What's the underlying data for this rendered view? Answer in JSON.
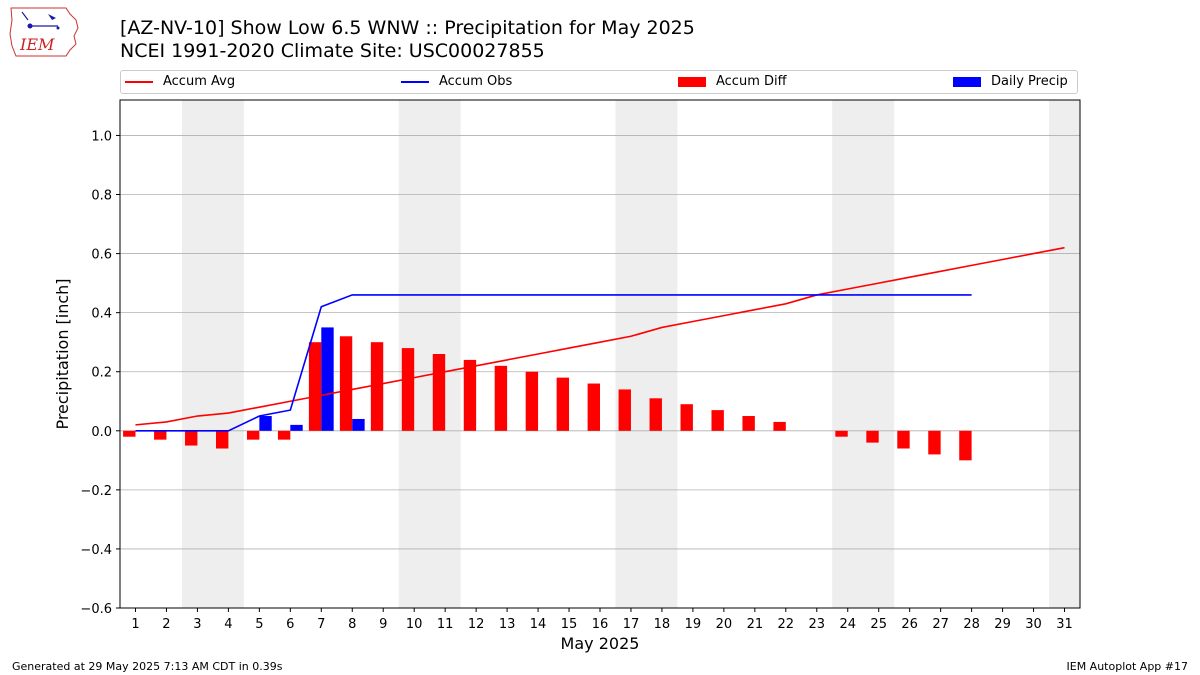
{
  "header": {
    "title_line1": "[AZ-NV-10] Show Low 6.5 WNW :: Precipitation for May 2025",
    "title_line2": "NCEI 1991-2020 Climate Site: USC00027855"
  },
  "logo": {
    "text": "IEM",
    "color": "#cc2222"
  },
  "footer": {
    "left": "Generated at 29 May 2025 7:13 AM CDT in 0.39s",
    "right": "IEM Autoplot App #17"
  },
  "legend": {
    "accum_avg": "Accum Avg",
    "accum_obs": "Accum Obs",
    "accum_diff": "Accum Diff",
    "daily_precip": "Daily Precip"
  },
  "colors": {
    "accum_avg": "#ff0000",
    "accum_obs": "#0000ff",
    "accum_diff": "#ff0000",
    "daily_precip": "#0000ff",
    "weekend_shade": "#eeeeee",
    "grid": "#b0b0b0"
  },
  "chart_data": {
    "type": "bar",
    "xlabel": "May 2025",
    "ylabel": "Precipitation [inch]",
    "ylim": [
      -0.6,
      1.12
    ],
    "xlim": [
      0.5,
      31.5
    ],
    "yticks": [
      -0.6,
      -0.4,
      -0.2,
      0.0,
      0.2,
      0.4,
      0.6,
      0.8,
      1.0
    ],
    "ytick_labels": [
      "−0.6",
      "−0.4",
      "−0.2",
      "0.0",
      "0.2",
      "0.4",
      "0.6",
      "0.8",
      "1.0"
    ],
    "days": [
      1,
      2,
      3,
      4,
      5,
      6,
      7,
      8,
      9,
      10,
      11,
      12,
      13,
      14,
      15,
      16,
      17,
      18,
      19,
      20,
      21,
      22,
      23,
      24,
      25,
      26,
      27,
      28,
      29,
      30,
      31
    ],
    "weekend_ranges": [
      [
        2.5,
        4.5
      ],
      [
        9.5,
        11.5
      ],
      [
        16.5,
        18.5
      ],
      [
        23.5,
        25.5
      ],
      [
        30.5,
        31.5
      ]
    ],
    "grid": "y",
    "legend_position": "top",
    "series": [
      {
        "name": "Accum Avg",
        "kind": "line",
        "x": [
          1,
          2,
          3,
          4,
          5,
          6,
          7,
          8,
          9,
          10,
          11,
          12,
          13,
          14,
          15,
          16,
          17,
          18,
          19,
          20,
          21,
          22,
          23,
          24,
          25,
          26,
          27,
          28,
          29,
          30,
          31
        ],
        "values": [
          0.02,
          0.03,
          0.05,
          0.06,
          0.08,
          0.1,
          0.12,
          0.14,
          0.16,
          0.18,
          0.2,
          0.22,
          0.24,
          0.26,
          0.28,
          0.3,
          0.32,
          0.35,
          0.37,
          0.39,
          0.41,
          0.43,
          0.46,
          0.48,
          0.5,
          0.52,
          0.54,
          0.56,
          0.58,
          0.6,
          0.62
        ]
      },
      {
        "name": "Accum Obs",
        "kind": "line",
        "x": [
          1,
          2,
          3,
          4,
          5,
          6,
          7,
          8,
          9,
          10,
          11,
          12,
          13,
          14,
          15,
          16,
          17,
          18,
          19,
          20,
          21,
          22,
          23,
          24,
          25,
          26,
          27,
          28
        ],
        "values": [
          0.0,
          0.0,
          0.0,
          0.0,
          0.05,
          0.07,
          0.42,
          0.46,
          0.46,
          0.46,
          0.46,
          0.46,
          0.46,
          0.46,
          0.46,
          0.46,
          0.46,
          0.46,
          0.46,
          0.46,
          0.46,
          0.46,
          0.46,
          0.46,
          0.46,
          0.46,
          0.46,
          0.46
        ]
      },
      {
        "name": "Accum Diff",
        "kind": "bar",
        "x": [
          1,
          2,
          3,
          4,
          5,
          6,
          7,
          8,
          9,
          10,
          11,
          12,
          13,
          14,
          15,
          16,
          17,
          18,
          19,
          20,
          21,
          22,
          23,
          24,
          25,
          26,
          27,
          28
        ],
        "values": [
          -0.02,
          -0.03,
          -0.05,
          -0.06,
          -0.03,
          -0.03,
          0.3,
          0.32,
          0.3,
          0.28,
          0.26,
          0.24,
          0.22,
          0.2,
          0.18,
          0.16,
          0.14,
          0.11,
          0.09,
          0.07,
          0.05,
          0.03,
          0.0,
          -0.02,
          -0.04,
          -0.06,
          -0.08,
          -0.1
        ]
      },
      {
        "name": "Daily Precip",
        "kind": "bar",
        "x": [
          5,
          6,
          7,
          8
        ],
        "values": [
          0.05,
          0.02,
          0.35,
          0.04
        ]
      }
    ]
  }
}
